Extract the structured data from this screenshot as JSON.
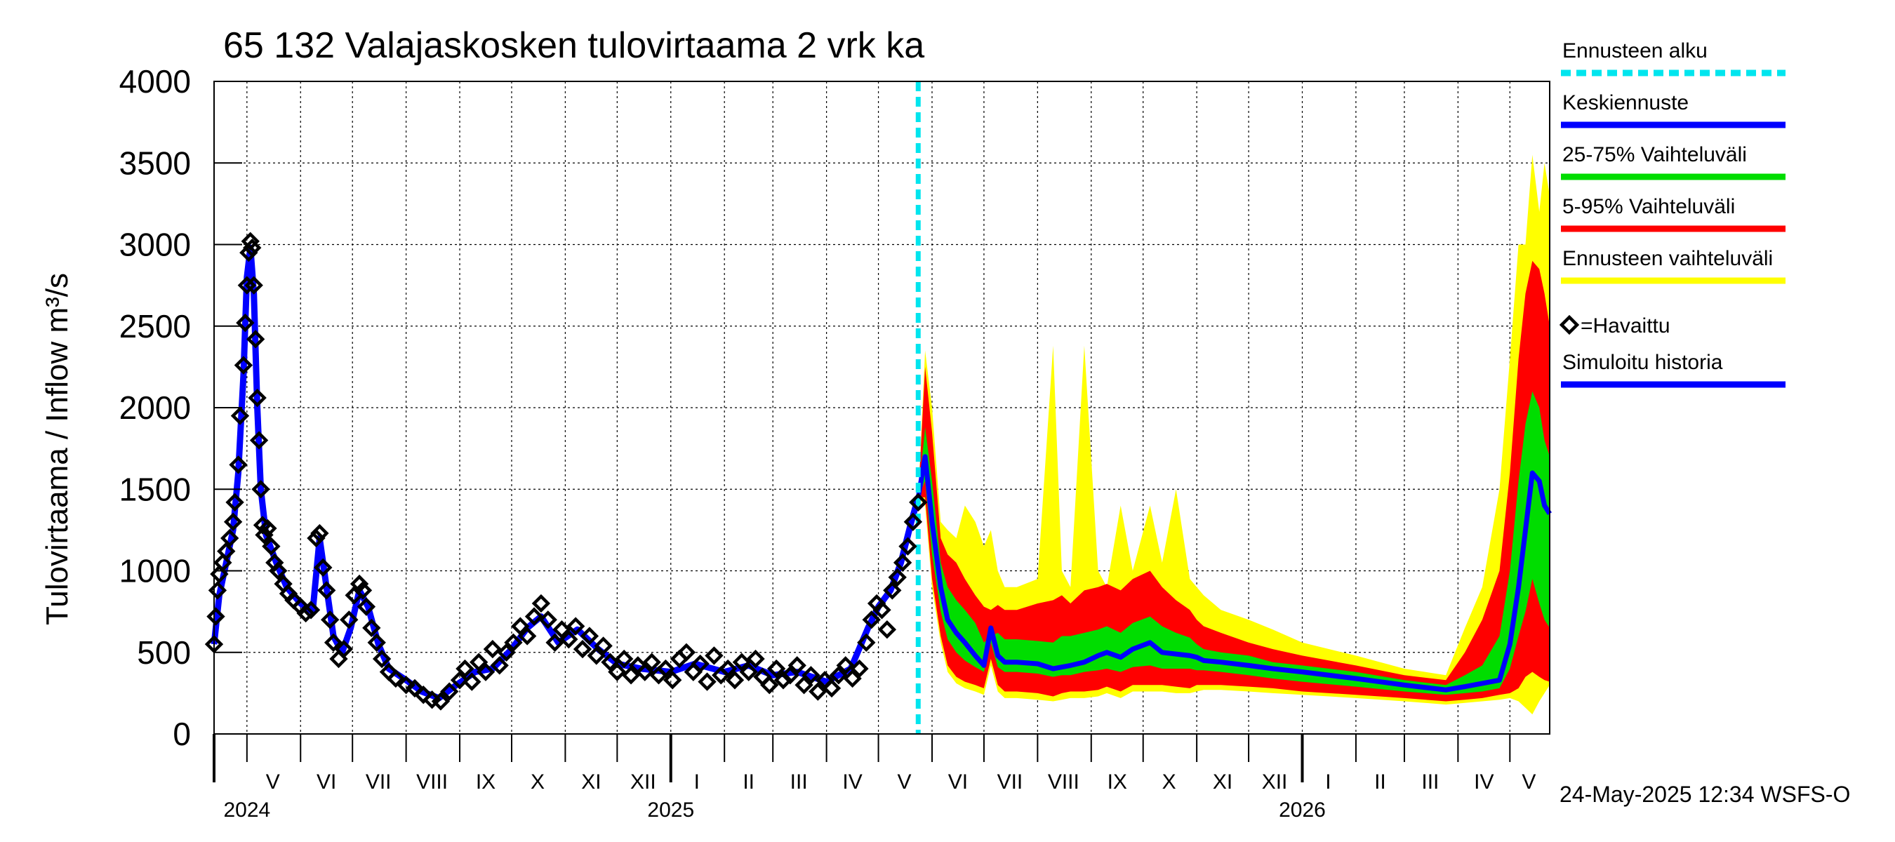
{
  "chart_data": {
    "type": "area",
    "title": "65 132 Valajaskosken tulovirtaama 2 vrk ka",
    "ylabel": "Tulovirtaama / Inflow    m³/s",
    "ylim": [
      0,
      4000
    ],
    "yticks": [
      "0",
      "500",
      "1000",
      "1500",
      "2000",
      "2500",
      "3000",
      "3500",
      "4000"
    ],
    "xlim": [
      "2024-04-12",
      "2026-05-24"
    ],
    "forecast_start": "2025-05-24",
    "grid": true,
    "month_labels": [
      {
        "label": "V",
        "date": "2024-05-16"
      },
      {
        "label": "VI",
        "date": "2024-06-16"
      },
      {
        "label": "VII",
        "date": "2024-07-16"
      },
      {
        "label": "VIII",
        "date": "2024-08-16"
      },
      {
        "label": "IX",
        "date": "2024-09-16"
      },
      {
        "label": "X",
        "date": "2024-10-16"
      },
      {
        "label": "XI",
        "date": "2024-11-16"
      },
      {
        "label": "XII",
        "date": "2024-12-16"
      },
      {
        "label": "I",
        "date": "2025-01-16"
      },
      {
        "label": "II",
        "date": "2025-02-15"
      },
      {
        "label": "III",
        "date": "2025-03-16"
      },
      {
        "label": "IV",
        "date": "2025-04-16"
      },
      {
        "label": "V",
        "date": "2025-05-16"
      },
      {
        "label": "VI",
        "date": "2025-06-16"
      },
      {
        "label": "VII",
        "date": "2025-07-16"
      },
      {
        "label": "VIII",
        "date": "2025-08-16"
      },
      {
        "label": "IX",
        "date": "2025-09-16"
      },
      {
        "label": "X",
        "date": "2025-10-16"
      },
      {
        "label": "XI",
        "date": "2025-11-16"
      },
      {
        "label": "XII",
        "date": "2025-12-16"
      },
      {
        "label": "I",
        "date": "2026-01-16"
      },
      {
        "label": "II",
        "date": "2026-02-15"
      },
      {
        "label": "III",
        "date": "2026-03-16"
      },
      {
        "label": "IV",
        "date": "2026-04-16"
      },
      {
        "label": "V",
        "date": "2026-05-12"
      }
    ],
    "year_labels": [
      {
        "label": "2024",
        "date": "2024-05-01"
      },
      {
        "label": "2025",
        "date": "2025-01-01"
      },
      {
        "label": "2026",
        "date": "2026-01-01"
      }
    ],
    "legend": [
      {
        "label": "Ennusteen alku",
        "color": "#00e5ee",
        "style": "dashed"
      },
      {
        "label": "Keskiennuste",
        "color": "#0000ff",
        "style": "line"
      },
      {
        "label": "25-75% Vaihteluväli",
        "color": "#00dd00",
        "style": "line"
      },
      {
        "label": "5-95% Vaihteluväli",
        "color": "#ff0000",
        "style": "line"
      },
      {
        "label": "Ennusteen vaihteluväli",
        "color": "#ffff00",
        "style": "line"
      },
      {
        "label": "=Havaittu",
        "color": "#000000",
        "style": "marker"
      },
      {
        "label": "Simuloitu historia",
        "color": "#0000ff",
        "style": "line"
      }
    ],
    "colors": {
      "simulated": "#0000ff",
      "observed": "#000000",
      "forecast_start": "#00e5ee",
      "median": "#0000ff",
      "band_25_75": "#00dd00",
      "band_5_95": "#ff0000",
      "band_minmax": "#ffff00",
      "grid": "#000000"
    },
    "simulated_history": {
      "name": "Simuloitu historia",
      "points": [
        [
          "2024-04-12",
          550
        ],
        [
          "2024-04-15",
          850
        ],
        [
          "2024-04-19",
          1050
        ],
        [
          "2024-04-23",
          1250
        ],
        [
          "2024-04-26",
          1600
        ],
        [
          "2024-04-29",
          2200
        ],
        [
          "2024-05-01",
          2800
        ],
        [
          "2024-05-03",
          2980
        ],
        [
          "2024-05-05",
          2700
        ],
        [
          "2024-05-07",
          2000
        ],
        [
          "2024-05-09",
          1500
        ],
        [
          "2024-05-12",
          1220
        ],
        [
          "2024-05-18",
          1050
        ],
        [
          "2024-05-24",
          900
        ],
        [
          "2024-06-01",
          800
        ],
        [
          "2024-06-08",
          750
        ],
        [
          "2024-06-12",
          1200
        ],
        [
          "2024-06-16",
          900
        ],
        [
          "2024-06-20",
          600
        ],
        [
          "2024-06-25",
          500
        ],
        [
          "2024-06-30",
          650
        ],
        [
          "2024-07-05",
          880
        ],
        [
          "2024-07-10",
          780
        ],
        [
          "2024-07-16",
          550
        ],
        [
          "2024-07-22",
          400
        ],
        [
          "2024-08-01",
          330
        ],
        [
          "2024-08-10",
          260
        ],
        [
          "2024-08-20",
          220
        ],
        [
          "2024-08-30",
          300
        ],
        [
          "2024-09-10",
          380
        ],
        [
          "2024-09-20",
          400
        ],
        [
          "2024-10-01",
          520
        ],
        [
          "2024-10-10",
          650
        ],
        [
          "2024-10-18",
          720
        ],
        [
          "2024-10-28",
          560
        ],
        [
          "2024-11-08",
          640
        ],
        [
          "2024-11-20",
          520
        ],
        [
          "2024-12-01",
          430
        ],
        [
          "2024-12-15",
          400
        ],
        [
          "2025-01-01",
          380
        ],
        [
          "2025-01-15",
          430
        ],
        [
          "2025-02-01",
          380
        ],
        [
          "2025-02-15",
          420
        ],
        [
          "2025-03-01",
          360
        ],
        [
          "2025-03-15",
          380
        ],
        [
          "2025-04-01",
          320
        ],
        [
          "2025-04-15",
          400
        ],
        [
          "2025-04-25",
          650
        ],
        [
          "2025-05-01",
          780
        ],
        [
          "2025-05-08",
          880
        ],
        [
          "2025-05-14",
          1050
        ],
        [
          "2025-05-20",
          1300
        ],
        [
          "2025-05-24",
          1450
        ]
      ]
    },
    "observed": {
      "name": "Havaittu",
      "points": [
        [
          "2024-04-12",
          550
        ],
        [
          "2024-04-13",
          720
        ],
        [
          "2024-04-14",
          880
        ],
        [
          "2024-04-15",
          980
        ],
        [
          "2024-04-17",
          1050
        ],
        [
          "2024-04-19",
          1120
        ],
        [
          "2024-04-21",
          1200
        ],
        [
          "2024-04-23",
          1300
        ],
        [
          "2024-04-24",
          1420
        ],
        [
          "2024-04-26",
          1650
        ],
        [
          "2024-04-27",
          1950
        ],
        [
          "2024-04-29",
          2260
        ],
        [
          "2024-04-30",
          2520
        ],
        [
          "2024-05-01",
          2750
        ],
        [
          "2024-05-02",
          2950
        ],
        [
          "2024-05-03",
          3020
        ],
        [
          "2024-05-04",
          2980
        ],
        [
          "2024-05-05",
          2750
        ],
        [
          "2024-05-06",
          2420
        ],
        [
          "2024-05-07",
          2060
        ],
        [
          "2024-05-08",
          1800
        ],
        [
          "2024-05-09",
          1500
        ],
        [
          "2024-05-10",
          1280
        ],
        [
          "2024-05-11",
          1220
        ],
        [
          "2024-05-13",
          1260
        ],
        [
          "2024-05-15",
          1150
        ],
        [
          "2024-05-17",
          1050
        ],
        [
          "2024-05-19",
          1000
        ],
        [
          "2024-05-22",
          920
        ],
        [
          "2024-05-25",
          860
        ],
        [
          "2024-05-28",
          820
        ],
        [
          "2024-06-01",
          780
        ],
        [
          "2024-06-04",
          740
        ],
        [
          "2024-06-07",
          760
        ],
        [
          "2024-06-10",
          1200
        ],
        [
          "2024-06-12",
          1230
        ],
        [
          "2024-06-14",
          1020
        ],
        [
          "2024-06-16",
          880
        ],
        [
          "2024-06-18",
          700
        ],
        [
          "2024-06-20",
          560
        ],
        [
          "2024-06-23",
          460
        ],
        [
          "2024-06-26",
          520
        ],
        [
          "2024-06-29",
          700
        ],
        [
          "2024-07-02",
          850
        ],
        [
          "2024-07-05",
          920
        ],
        [
          "2024-07-07",
          880
        ],
        [
          "2024-07-09",
          780
        ],
        [
          "2024-07-12",
          650
        ],
        [
          "2024-07-15",
          560
        ],
        [
          "2024-07-18",
          460
        ],
        [
          "2024-07-22",
          380
        ],
        [
          "2024-07-26",
          340
        ],
        [
          "2024-08-01",
          300
        ],
        [
          "2024-08-06",
          280
        ],
        [
          "2024-08-11",
          240
        ],
        [
          "2024-08-16",
          210
        ],
        [
          "2024-08-21",
          200
        ],
        [
          "2024-08-26",
          260
        ],
        [
          "2024-09-01",
          330
        ],
        [
          "2024-09-04",
          400
        ],
        [
          "2024-09-08",
          320
        ],
        [
          "2024-09-12",
          440
        ],
        [
          "2024-09-16",
          380
        ],
        [
          "2024-09-20",
          520
        ],
        [
          "2024-09-24",
          420
        ],
        [
          "2024-09-28",
          500
        ],
        [
          "2024-10-02",
          560
        ],
        [
          "2024-10-06",
          660
        ],
        [
          "2024-10-10",
          600
        ],
        [
          "2024-10-14",
          720
        ],
        [
          "2024-10-18",
          800
        ],
        [
          "2024-10-22",
          700
        ],
        [
          "2024-10-26",
          560
        ],
        [
          "2024-10-30",
          640
        ],
        [
          "2024-11-03",
          580
        ],
        [
          "2024-11-07",
          660
        ],
        [
          "2024-11-11",
          520
        ],
        [
          "2024-11-15",
          600
        ],
        [
          "2024-11-19",
          480
        ],
        [
          "2024-11-23",
          540
        ],
        [
          "2024-11-27",
          440
        ],
        [
          "2024-12-01",
          380
        ],
        [
          "2024-12-05",
          460
        ],
        [
          "2024-12-09",
          360
        ],
        [
          "2024-12-13",
          420
        ],
        [
          "2024-12-17",
          380
        ],
        [
          "2024-12-21",
          440
        ],
        [
          "2024-12-25",
          360
        ],
        [
          "2024-12-29",
          400
        ],
        [
          "2025-01-02",
          330
        ],
        [
          "2025-01-06",
          460
        ],
        [
          "2025-01-10",
          500
        ],
        [
          "2025-01-14",
          380
        ],
        [
          "2025-01-18",
          430
        ],
        [
          "2025-01-22",
          320
        ],
        [
          "2025-01-26",
          480
        ],
        [
          "2025-01-30",
          360
        ],
        [
          "2025-02-03",
          400
        ],
        [
          "2025-02-07",
          330
        ],
        [
          "2025-02-11",
          440
        ],
        [
          "2025-02-15",
          380
        ],
        [
          "2025-02-19",
          460
        ],
        [
          "2025-02-23",
          350
        ],
        [
          "2025-02-27",
          300
        ],
        [
          "2025-03-03",
          400
        ],
        [
          "2025-03-07",
          330
        ],
        [
          "2025-03-11",
          360
        ],
        [
          "2025-03-15",
          420
        ],
        [
          "2025-03-19",
          300
        ],
        [
          "2025-03-23",
          360
        ],
        [
          "2025-03-27",
          260
        ],
        [
          "2025-03-31",
          330
        ],
        [
          "2025-04-04",
          280
        ],
        [
          "2025-04-08",
          360
        ],
        [
          "2025-04-12",
          420
        ],
        [
          "2025-04-16",
          340
        ],
        [
          "2025-04-20",
          400
        ],
        [
          "2025-04-24",
          560
        ],
        [
          "2025-04-27",
          700
        ],
        [
          "2025-04-30",
          800
        ],
        [
          "2025-05-03",
          760
        ],
        [
          "2025-05-06",
          640
        ],
        [
          "2025-05-09",
          880
        ],
        [
          "2025-05-12",
          960
        ],
        [
          "2025-05-15",
          1050
        ],
        [
          "2025-05-18",
          1150
        ],
        [
          "2025-05-21",
          1300
        ],
        [
          "2025-05-24",
          1420
        ]
      ]
    },
    "forecast": {
      "x": [
        "2025-05-24",
        "2025-05-28",
        "2025-06-01",
        "2025-06-06",
        "2025-06-10",
        "2025-06-15",
        "2025-06-20",
        "2025-06-26",
        "2025-07-01",
        "2025-07-05",
        "2025-07-09",
        "2025-07-13",
        "2025-07-20",
        "2025-08-01",
        "2025-08-10",
        "2025-08-15",
        "2025-08-20",
        "2025-08-28",
        "2025-09-05",
        "2025-09-10",
        "2025-09-18",
        "2025-09-25",
        "2025-10-05",
        "2025-10-12",
        "2025-10-20",
        "2025-10-28",
        "2025-11-01",
        "2025-11-05",
        "2025-11-15",
        "2025-12-01",
        "2025-12-15",
        "2026-01-01",
        "2026-02-01",
        "2026-03-01",
        "2026-03-25",
        "2026-04-05",
        "2026-04-15",
        "2026-04-25",
        "2026-05-01",
        "2026-05-06",
        "2026-05-10",
        "2026-05-14",
        "2026-05-18",
        "2026-05-21",
        "2026-05-24"
      ],
      "median": [
        1450,
        1700,
        1300,
        900,
        700,
        620,
        560,
        480,
        420,
        650,
        480,
        440,
        440,
        430,
        400,
        410,
        420,
        440,
        480,
        500,
        470,
        520,
        560,
        500,
        490,
        480,
        470,
        450,
        440,
        420,
        400,
        380,
        340,
        300,
        270,
        290,
        310,
        330,
        550,
        900,
        1250,
        1600,
        1550,
        1400,
        1350
      ],
      "p25": [
        1450,
        1550,
        1100,
        750,
        580,
        500,
        450,
        410,
        380,
        560,
        410,
        380,
        380,
        370,
        350,
        360,
        360,
        380,
        390,
        400,
        380,
        410,
        420,
        400,
        400,
        400,
        390,
        390,
        380,
        360,
        340,
        320,
        290,
        260,
        240,
        250,
        260,
        280,
        400,
        600,
        750,
        950,
        800,
        700,
        650
      ],
      "p75": [
        1450,
        1880,
        1550,
        1050,
        900,
        820,
        760,
        680,
        560,
        600,
        620,
        580,
        580,
        570,
        560,
        600,
        600,
        620,
        640,
        660,
        620,
        680,
        720,
        660,
        620,
        590,
        550,
        520,
        500,
        480,
        440,
        420,
        380,
        330,
        300,
        360,
        420,
        600,
        1000,
        1550,
        1900,
        2100,
        2000,
        1800,
        1700
      ],
      "p5": [
        1450,
        1450,
        950,
        600,
        420,
        350,
        320,
        300,
        280,
        460,
        300,
        260,
        260,
        250,
        230,
        250,
        260,
        260,
        270,
        290,
        260,
        300,
        300,
        300,
        290,
        280,
        300,
        300,
        300,
        290,
        280,
        260,
        240,
        220,
        200,
        210,
        220,
        240,
        250,
        280,
        350,
        380,
        350,
        330,
        320
      ],
      "p95": [
        1450,
        2250,
        1850,
        1200,
        1100,
        1050,
        950,
        850,
        780,
        760,
        790,
        760,
        760,
        800,
        820,
        850,
        800,
        880,
        900,
        920,
        880,
        950,
        1000,
        900,
        820,
        760,
        700,
        660,
        620,
        560,
        520,
        480,
        420,
        360,
        330,
        500,
        700,
        1000,
        1600,
        2300,
        2700,
        2900,
        2850,
        2700,
        2500
      ],
      "min": [
        1450,
        1400,
        900,
        560,
        380,
        310,
        280,
        260,
        240,
        420,
        260,
        220,
        220,
        210,
        200,
        210,
        220,
        220,
        230,
        250,
        220,
        260,
        260,
        260,
        250,
        250,
        260,
        270,
        270,
        260,
        250,
        240,
        220,
        200,
        180,
        190,
        200,
        210,
        220,
        200,
        160,
        120,
        200,
        250,
        300
      ],
      "max": [
        1450,
        2350,
        2000,
        1300,
        1250,
        1200,
        1400,
        1300,
        1150,
        1250,
        1000,
        900,
        900,
        950,
        2380,
        1000,
        900,
        2380,
        1000,
        900,
        1400,
        1000,
        1400,
        1050,
        1500,
        950,
        900,
        850,
        760,
        700,
        640,
        560,
        480,
        400,
        360,
        650,
        900,
        1500,
        2300,
        3000,
        3000,
        3550,
        3200,
        3500,
        3300
      ]
    }
  },
  "timestamp": "24-May-2025 12:34 WSFS-O"
}
